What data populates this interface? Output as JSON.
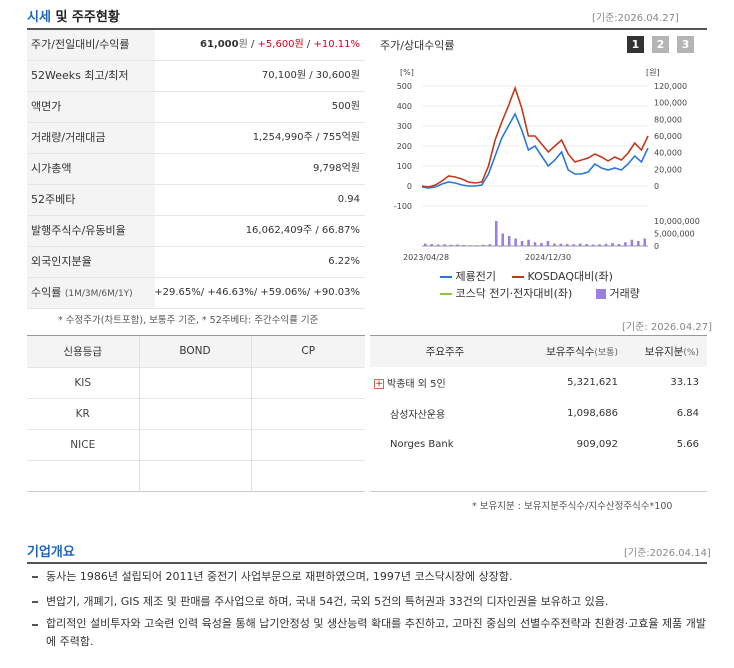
{
  "section1": {
    "title_blue": "시세",
    "title_rest": " 및 주주현황",
    "date": "[기준:2026.04.27]"
  },
  "info_rows": [
    {
      "label": "주가/전일대비/수익률",
      "v1": "61,000",
      "u1": "원",
      "sep1": " / ",
      "v2": "+5,600",
      "u2": "원",
      "sep2": " / ",
      "v3": "+10.11%"
    },
    {
      "label": "52Weeks 최고/최저",
      "value": "70,100원 / 30,600원"
    },
    {
      "label": "액면가",
      "value": "500원"
    },
    {
      "label": "거래량/거래대금",
      "value": "1,254,990주 / 755억원"
    },
    {
      "label": "시가총액",
      "value": "9,798억원"
    },
    {
      "label": "52주베타",
      "value": "0.94"
    },
    {
      "label": "발행주식수/유동비율",
      "value": "16,062,409주 / 66.87%"
    },
    {
      "label": "외국인지분율",
      "value": "6.22%"
    }
  ],
  "returns_row": {
    "label": "수익률",
    "periods": "(1M/3M/6M/1Y)",
    "values": [
      "+29.65%",
      "+46.63%",
      "+59.06%",
      "+90.03%"
    ]
  },
  "info_note": "* 수정주가(차트포함), 보통주 기준, * 52주베타: 주간수익률 기준",
  "chart": {
    "title": "주가/상대수익률",
    "buttons": [
      "1",
      "2",
      "3"
    ],
    "left_unit": "[%]",
    "right_unit": "[원]",
    "left_ticks": [
      "500",
      "400",
      "300",
      "200",
      "100",
      "0",
      "-100"
    ],
    "right_ticks": [
      "120,000",
      "100,000",
      "80,000",
      "60,000",
      "40,000",
      "20,000",
      "0"
    ],
    "volume_ticks": [
      "10,000,000",
      "5,000,000",
      "0"
    ],
    "x_labels": [
      "2023/04/28",
      "2024/12/30"
    ],
    "legend": [
      "제룡전기",
      "KOSDAQ대비(좌)",
      "코스닥 전기·전자대비(좌)",
      "거래량"
    ],
    "colors": {
      "stock": "#2a78d4",
      "kosdaq": "#c0391b",
      "sector": "#8cc63e",
      "volume": "#9b7fe0"
    }
  },
  "chart_data": {
    "type": "line",
    "x_labels": [
      "2023/04/28",
      "2024/12/30"
    ],
    "left_ylim": [
      -100,
      500
    ],
    "right_ylim": [
      0,
      120000
    ],
    "series": [
      {
        "name": "제룡전기",
        "values": [
          -5,
          -10,
          -5,
          10,
          20,
          15,
          5,
          0,
          0,
          5,
          60,
          150,
          240,
          300,
          360,
          280,
          180,
          200,
          150,
          100,
          130,
          170,
          80,
          60,
          60,
          70,
          110,
          90,
          80,
          90,
          80,
          110,
          150,
          120,
          190
        ]
      },
      {
        "name": "KOSDAQ대비(좌)",
        "values": [
          0,
          -5,
          5,
          25,
          50,
          45,
          35,
          20,
          15,
          20,
          100,
          230,
          320,
          400,
          490,
          390,
          250,
          250,
          210,
          170,
          200,
          230,
          160,
          120,
          130,
          140,
          160,
          145,
          125,
          145,
          130,
          165,
          215,
          180,
          250
        ]
      }
    ],
    "volume": {
      "ylim": [
        0,
        10000000
      ],
      "values": [
        1000000,
        800000,
        600000,
        700000,
        500000,
        600000,
        400000,
        300000,
        300000,
        500000,
        700000,
        10000000,
        5000000,
        4000000,
        3000000,
        2000000,
        2500000,
        1500000,
        1200000,
        2000000,
        1000000,
        900000,
        800000,
        700000,
        1000000,
        800000,
        600000,
        700000,
        900000,
        1200000,
        800000,
        1500000,
        2500000,
        2000000,
        3000000
      ]
    }
  },
  "credit": {
    "headers": [
      "신용등급",
      "BOND",
      "CP"
    ],
    "rows": [
      [
        "KIS",
        "",
        ""
      ],
      [
        "KR",
        "",
        ""
      ],
      [
        "NICE",
        "",
        ""
      ],
      [
        "",
        "",
        ""
      ]
    ]
  },
  "holders": {
    "date": "[기준: 2026.04.27]",
    "headers": [
      "주요주주",
      "보유주식수",
      "(보통)",
      "보유지분",
      "(%)"
    ],
    "rows": [
      {
        "name": "박종태 외 5인",
        "shares": "5,321,621",
        "pct": "33.13"
      },
      {
        "name": "삼성자산운용",
        "shares": "1,098,686",
        "pct": "6.84"
      },
      {
        "name": "Norges Bank",
        "shares": "909,092",
        "pct": "5.66"
      }
    ],
    "note": "* 보유지분 : 보유지분주식수/지수산정주식수*100"
  },
  "overview": {
    "title": "기업개요",
    "date": "[기준:2026.04.14]",
    "items": [
      "동사는 1986년 설립되어 2011년 중전기 사업부문으로 재편하였으며, 1997년 코스닥시장에 상장함.",
      "변압기, 개폐기, GIS 제조 및 판매를 주사업으로 하며, 국내 54건, 국외 5건의 특허권과 33건의 디자인권을 보유하고 있음.",
      "합리적인 설비투자와 고숙련 인력 육성을 통해 납기안정성 및 생산능력 확대를 추진하고, 고마진 중심의 선별수주전략과 친환경·고효율 제품 개발에 주력함."
    ]
  }
}
